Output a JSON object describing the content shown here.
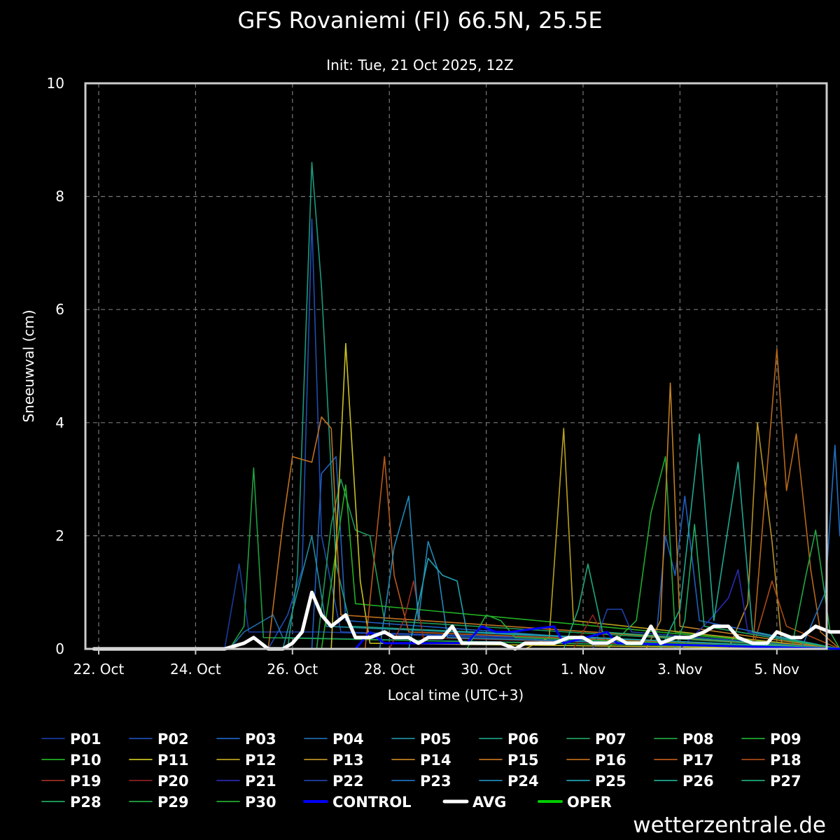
{
  "chart_data": {
    "type": "line",
    "title": "GFS Rovaniemi (FI) 66.5N, 25.5E",
    "subtitle": "Init: Tue, 21 Oct 2025, 12Z",
    "xlabel": "Local time (UTC+3)",
    "ylabel": "Sneeuwval (cm)",
    "ylim": [
      0,
      10
    ],
    "yticks": [
      0,
      2,
      4,
      6,
      8,
      10
    ],
    "xlim": [
      -0.1,
      15.3
    ],
    "xticks": [
      {
        "x": 0,
        "label": "22. Oct"
      },
      {
        "x": 2,
        "label": "24. Oct"
      },
      {
        "x": 4,
        "label": "26. Oct"
      },
      {
        "x": 6,
        "label": "28. Oct"
      },
      {
        "x": 8,
        "label": "30. Oct"
      },
      {
        "x": 10,
        "label": "1. Nov"
      },
      {
        "x": 12,
        "label": "3. Nov"
      },
      {
        "x": 14,
        "label": "5. Nov"
      }
    ],
    "grid": true,
    "legend_position": "bottom",
    "colors": {
      "control": "#0000ff",
      "avg": "#ffffff",
      "oper": "#00cc00"
    },
    "series": [
      {
        "name": "P01",
        "color": "#1a3a9a",
        "values": [
          [
            -0.1,
            0
          ],
          [
            2.6,
            0
          ],
          [
            2.9,
            1.5
          ],
          [
            3.1,
            0.3
          ],
          [
            4.6,
            0.3
          ],
          [
            15.3,
            0
          ]
        ]
      },
      {
        "name": "P02",
        "color": "#1e4db0",
        "values": [
          [
            -0.1,
            0
          ],
          [
            3.5,
            0
          ],
          [
            3.9,
            0.6
          ],
          [
            4.2,
            1.4
          ],
          [
            4.4,
            7.6
          ],
          [
            4.6,
            2.0
          ],
          [
            5.0,
            0.3
          ],
          [
            9.0,
            0.2
          ],
          [
            15.3,
            0
          ]
        ]
      },
      {
        "name": "P03",
        "color": "#1f5fbf",
        "values": [
          [
            -0.1,
            0
          ],
          [
            4.4,
            0
          ],
          [
            4.6,
            3.1
          ],
          [
            4.9,
            3.4
          ],
          [
            5.1,
            0.5
          ],
          [
            11.5,
            0.1
          ],
          [
            11.7,
            2.0
          ],
          [
            11.9,
            1.3
          ],
          [
            12.1,
            2.7
          ],
          [
            12.4,
            0.5
          ],
          [
            15.3,
            0
          ]
        ]
      },
      {
        "name": "P04",
        "color": "#1e6aa8",
        "values": [
          [
            -0.1,
            0
          ],
          [
            2.7,
            0
          ],
          [
            3.0,
            0.3
          ],
          [
            3.6,
            0.6
          ],
          [
            3.8,
            0.2
          ],
          [
            15.3,
            0
          ]
        ]
      },
      {
        "name": "P05",
        "color": "#1f8a9e",
        "values": [
          [
            -0.1,
            0
          ],
          [
            3.8,
            0
          ],
          [
            4.4,
            2.0
          ],
          [
            4.7,
            0.4
          ],
          [
            15.3,
            0
          ]
        ]
      },
      {
        "name": "P06",
        "color": "#1a9a80",
        "values": [
          [
            -0.1,
            0
          ],
          [
            3.9,
            0
          ],
          [
            4.1,
            1.3
          ],
          [
            4.4,
            8.6
          ],
          [
            4.6,
            6.4
          ],
          [
            4.9,
            1.5
          ],
          [
            5.2,
            0.4
          ],
          [
            15.3,
            0
          ]
        ]
      },
      {
        "name": "P07",
        "color": "#1f9a5a",
        "values": [
          [
            -0.1,
            0
          ],
          [
            4.5,
            0
          ],
          [
            4.8,
            2.2
          ],
          [
            5.0,
            3.0
          ],
          [
            5.3,
            2.1
          ],
          [
            5.6,
            2.0
          ],
          [
            5.9,
            0.5
          ],
          [
            15.3,
            0
          ]
        ]
      },
      {
        "name": "P08",
        "color": "#1fa040",
        "values": [
          [
            -0.1,
            0
          ],
          [
            2.7,
            0
          ],
          [
            3.0,
            0.4
          ],
          [
            3.2,
            3.2
          ],
          [
            3.4,
            0.2
          ],
          [
            15.3,
            0
          ]
        ]
      },
      {
        "name": "P09",
        "color": "#1faa30",
        "values": [
          [
            -0.1,
            0
          ],
          [
            10.5,
            0
          ],
          [
            11.1,
            0.5
          ],
          [
            11.4,
            2.4
          ],
          [
            11.7,
            3.4
          ],
          [
            11.9,
            0.3
          ],
          [
            15.3,
            0
          ]
        ]
      },
      {
        "name": "P10",
        "color": "#22b022",
        "values": [
          [
            -0.1,
            0
          ],
          [
            4.6,
            0
          ],
          [
            5.1,
            2.9
          ],
          [
            5.3,
            0.8
          ],
          [
            15.3,
            0
          ]
        ]
      },
      {
        "name": "P11",
        "color": "#c8c020",
        "values": [
          [
            -0.1,
            0
          ],
          [
            4.8,
            0
          ],
          [
            5.1,
            5.4
          ],
          [
            5.4,
            1.2
          ],
          [
            5.6,
            0.1
          ],
          [
            15.3,
            0
          ]
        ]
      },
      {
        "name": "P12",
        "color": "#b8a020",
        "values": [
          [
            -0.1,
            0
          ],
          [
            8.8,
            0
          ],
          [
            9.3,
            0.2
          ],
          [
            9.6,
            3.9
          ],
          [
            9.8,
            0.5
          ],
          [
            15.3,
            0
          ]
        ]
      },
      {
        "name": "P13",
        "color": "#b89025",
        "values": [
          [
            -0.1,
            0
          ],
          [
            13.0,
            0
          ],
          [
            13.4,
            0.8
          ],
          [
            13.6,
            4.0
          ],
          [
            13.9,
            1.9
          ],
          [
            14.1,
            0.1
          ],
          [
            15.3,
            0
          ]
        ]
      },
      {
        "name": "P14",
        "color": "#c08025",
        "values": [
          [
            -0.1,
            0
          ],
          [
            11.3,
            0
          ],
          [
            11.6,
            0.5
          ],
          [
            11.8,
            4.7
          ],
          [
            12.0,
            0.4
          ],
          [
            15.3,
            0
          ]
        ]
      },
      {
        "name": "P15",
        "color": "#c07020",
        "values": [
          [
            -0.1,
            0
          ],
          [
            3.5,
            0
          ],
          [
            3.8,
            2.2
          ],
          [
            4.0,
            3.4
          ],
          [
            4.4,
            3.3
          ],
          [
            4.6,
            4.1
          ],
          [
            4.8,
            3.9
          ],
          [
            5.0,
            0.6
          ],
          [
            15.3,
            0
          ]
        ]
      },
      {
        "name": "P16",
        "color": "#b86818",
        "values": [
          [
            -0.1,
            0
          ],
          [
            13.5,
            0
          ],
          [
            14.0,
            5.3
          ],
          [
            14.2,
            2.8
          ],
          [
            14.4,
            3.8
          ],
          [
            14.7,
            1.4
          ],
          [
            14.9,
            0.3
          ],
          [
            15.3,
            0
          ]
        ]
      },
      {
        "name": "P17",
        "color": "#b85818",
        "values": [
          [
            -0.1,
            0
          ],
          [
            5.5,
            0
          ],
          [
            5.9,
            3.4
          ],
          [
            6.1,
            1.3
          ],
          [
            6.4,
            0.3
          ],
          [
            15.3,
            0
          ]
        ]
      },
      {
        "name": "P18",
        "color": "#a84a18",
        "values": [
          [
            -0.1,
            0
          ],
          [
            13.5,
            0
          ],
          [
            13.9,
            1.2
          ],
          [
            14.2,
            0.4
          ],
          [
            15.3,
            0
          ]
        ]
      },
      {
        "name": "P19",
        "color": "#9a3020",
        "values": [
          [
            -0.1,
            0
          ],
          [
            6.0,
            0
          ],
          [
            6.3,
            0.5
          ],
          [
            6.5,
            1.2
          ],
          [
            6.7,
            0.2
          ],
          [
            15.3,
            0
          ]
        ]
      },
      {
        "name": "P20",
        "color": "#8a2020",
        "values": [
          [
            -0.1,
            0
          ],
          [
            9.8,
            0
          ],
          [
            10.2,
            0.6
          ],
          [
            10.5,
            0.1
          ],
          [
            15.3,
            0
          ]
        ]
      },
      {
        "name": "P21",
        "color": "#2a2ab0",
        "values": [
          [
            -0.1,
            0
          ],
          [
            12.0,
            0
          ],
          [
            12.6,
            0.5
          ],
          [
            13.0,
            0.9
          ],
          [
            13.2,
            1.4
          ],
          [
            13.4,
            0.3
          ],
          [
            15.3,
            0
          ]
        ]
      },
      {
        "name": "P22",
        "color": "#2040a8",
        "values": [
          [
            -0.1,
            0
          ],
          [
            10.2,
            0
          ],
          [
            10.5,
            0.7
          ],
          [
            10.8,
            0.7
          ],
          [
            11.0,
            0.3
          ],
          [
            15.3,
            0
          ]
        ]
      },
      {
        "name": "P23",
        "color": "#2070c0",
        "values": [
          [
            -0.1,
            0
          ],
          [
            14.5,
            0
          ],
          [
            15.0,
            1.0
          ],
          [
            15.2,
            3.6
          ],
          [
            15.3,
            2.0
          ]
        ]
      },
      {
        "name": "P24",
        "color": "#2088b8",
        "values": [
          [
            -0.1,
            0
          ],
          [
            5.8,
            0
          ],
          [
            6.1,
            1.8
          ],
          [
            6.4,
            2.7
          ],
          [
            6.6,
            0.5
          ],
          [
            6.8,
            1.9
          ],
          [
            7.0,
            1.4
          ],
          [
            7.2,
            0.2
          ],
          [
            15.3,
            0
          ]
        ]
      },
      {
        "name": "P25",
        "color": "#20a0b0",
        "values": [
          [
            -0.1,
            0
          ],
          [
            6.4,
            0
          ],
          [
            6.8,
            1.6
          ],
          [
            7.1,
            1.3
          ],
          [
            7.4,
            1.2
          ],
          [
            7.6,
            0.3
          ],
          [
            15.3,
            0
          ]
        ]
      },
      {
        "name": "P26",
        "color": "#1fa890",
        "values": [
          [
            -0.1,
            0
          ],
          [
            11.6,
            0
          ],
          [
            12.0,
            0.7
          ],
          [
            12.4,
            3.8
          ],
          [
            12.7,
            0.5
          ],
          [
            13.2,
            3.3
          ],
          [
            13.5,
            0.3
          ],
          [
            15.3,
            0
          ]
        ]
      },
      {
        "name": "P27",
        "color": "#1fa878",
        "values": [
          [
            -0.1,
            0
          ],
          [
            9.6,
            0
          ],
          [
            9.9,
            0.7
          ],
          [
            10.1,
            1.5
          ],
          [
            10.4,
            0.3
          ],
          [
            15.3,
            0
          ]
        ]
      },
      {
        "name": "P28",
        "color": "#1fa860",
        "values": [
          [
            -0.1,
            0
          ],
          [
            11.9,
            0
          ],
          [
            12.1,
            0.5
          ],
          [
            12.3,
            2.2
          ],
          [
            12.5,
            0.4
          ],
          [
            15.3,
            0
          ]
        ]
      },
      {
        "name": "P29",
        "color": "#20a845",
        "values": [
          [
            -0.1,
            0
          ],
          [
            14.3,
            0
          ],
          [
            14.6,
            1.3
          ],
          [
            14.8,
            2.1
          ],
          [
            15.1,
            0.3
          ],
          [
            15.3,
            0
          ]
        ]
      },
      {
        "name": "P30",
        "color": "#22aa30",
        "values": [
          [
            -0.1,
            0
          ],
          [
            7.6,
            0
          ],
          [
            8.0,
            0.6
          ],
          [
            8.3,
            0.5
          ],
          [
            8.6,
            0.2
          ],
          [
            15.3,
            0
          ]
        ]
      },
      {
        "name": "CONTROL",
        "color": "#0000ff",
        "values": [
          [
            -0.1,
            0
          ],
          [
            5.3,
            0
          ],
          [
            5.6,
            0.3
          ],
          [
            5.9,
            0.1
          ],
          [
            7.6,
            0.1
          ],
          [
            7.9,
            0.4
          ],
          [
            8.2,
            0.3
          ],
          [
            8.5,
            0.3
          ],
          [
            9.4,
            0.4
          ],
          [
            9.6,
            0.1
          ],
          [
            10.5,
            0.3
          ],
          [
            10.7,
            0.1
          ],
          [
            15.3,
            0
          ]
        ]
      },
      {
        "name": "AVG",
        "color": "#ffffff",
        "values": [
          [
            -0.1,
            0
          ],
          [
            2.6,
            0
          ],
          [
            3.0,
            0.1
          ],
          [
            3.2,
            0.2
          ],
          [
            3.5,
            0
          ],
          [
            3.8,
            0
          ],
          [
            4.0,
            0.1
          ],
          [
            4.2,
            0.3
          ],
          [
            4.4,
            1.0
          ],
          [
            4.6,
            0.6
          ],
          [
            4.8,
            0.4
          ],
          [
            5.1,
            0.6
          ],
          [
            5.3,
            0.2
          ],
          [
            5.6,
            0.2
          ],
          [
            5.9,
            0.3
          ],
          [
            6.1,
            0.2
          ],
          [
            6.4,
            0.2
          ],
          [
            6.6,
            0.1
          ],
          [
            6.8,
            0.2
          ],
          [
            7.1,
            0.2
          ],
          [
            7.3,
            0.4
          ],
          [
            7.5,
            0.1
          ],
          [
            8.3,
            0.1
          ],
          [
            8.6,
            0
          ],
          [
            8.8,
            0.1
          ],
          [
            9.4,
            0.1
          ],
          [
            9.7,
            0.2
          ],
          [
            10.0,
            0.2
          ],
          [
            10.2,
            0.1
          ],
          [
            10.5,
            0.1
          ],
          [
            10.7,
            0.2
          ],
          [
            10.9,
            0.1
          ],
          [
            11.2,
            0.1
          ],
          [
            11.4,
            0.4
          ],
          [
            11.6,
            0.1
          ],
          [
            11.9,
            0.2
          ],
          [
            12.2,
            0.2
          ],
          [
            12.5,
            0.3
          ],
          [
            12.7,
            0.4
          ],
          [
            13.0,
            0.4
          ],
          [
            13.2,
            0.2
          ],
          [
            13.5,
            0.1
          ],
          [
            13.8,
            0.1
          ],
          [
            14.0,
            0.3
          ],
          [
            14.3,
            0.2
          ],
          [
            14.5,
            0.2
          ],
          [
            14.8,
            0.4
          ],
          [
            15.1,
            0.3
          ],
          [
            15.3,
            0.3
          ]
        ]
      },
      {
        "name": "OPER",
        "color": "#00cc00",
        "values": [
          [
            -0.1,
            0
          ],
          [
            15.3,
            0
          ]
        ]
      }
    ]
  },
  "watermark": "wetterzentrale.de"
}
